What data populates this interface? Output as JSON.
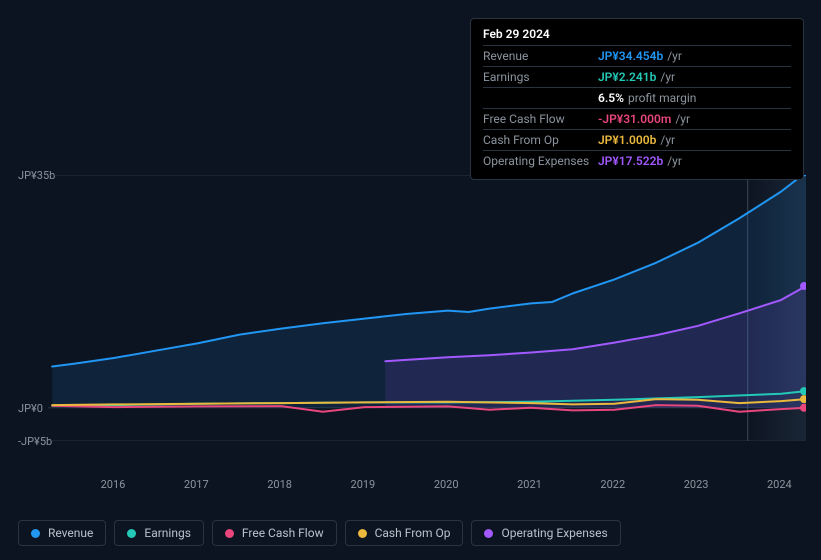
{
  "tooltip": {
    "date": "Feb 29 2024",
    "rows": [
      {
        "label": "Revenue",
        "value": "JP¥34.454b",
        "suffix": "/yr",
        "color": "#2196f3"
      },
      {
        "label": "Earnings",
        "value": "JP¥2.241b",
        "suffix": "/yr",
        "color": "#23c9b6"
      },
      {
        "label": "",
        "value": "6.5%",
        "suffix": "profit margin",
        "color": "#ffffff"
      },
      {
        "label": "Free Cash Flow",
        "value": "-JP¥31.000m",
        "suffix": "/yr",
        "color": "#e8467c"
      },
      {
        "label": "Cash From Op",
        "value": "JP¥1.000b",
        "suffix": "/yr",
        "color": "#eab93d"
      },
      {
        "label": "Operating Expenses",
        "value": "JP¥17.522b",
        "suffix": "/yr",
        "color": "#a259ff"
      }
    ]
  },
  "chart": {
    "type": "area-line",
    "background": "#0d1421",
    "grid_color": "#2a3340",
    "y_axis": {
      "min": -5,
      "max": 35,
      "ticks": [
        {
          "v": 35,
          "label": "JP¥35b"
        },
        {
          "v": 0,
          "label": "JP¥0"
        },
        {
          "v": -5,
          "label": "-JP¥5b"
        }
      ]
    },
    "x_axis": {
      "min": 2015.2,
      "max": 2024.3,
      "ticks": [
        "2016",
        "2017",
        "2018",
        "2019",
        "2020",
        "2021",
        "2022",
        "2023",
        "2024"
      ]
    },
    "highlight_x": 2023.6,
    "series": [
      {
        "name": "Revenue",
        "color": "#2196f3",
        "fill": true,
        "fill_opacity": 0.12,
        "data": [
          [
            2015.25,
            6.2
          ],
          [
            2015.5,
            6.6
          ],
          [
            2016,
            7.5
          ],
          [
            2016.5,
            8.6
          ],
          [
            2017,
            9.7
          ],
          [
            2017.5,
            11.0
          ],
          [
            2018,
            11.9
          ],
          [
            2018.5,
            12.7
          ],
          [
            2019,
            13.4
          ],
          [
            2019.5,
            14.1
          ],
          [
            2020,
            14.6
          ],
          [
            2020.25,
            14.4
          ],
          [
            2020.5,
            14.9
          ],
          [
            2021,
            15.7
          ],
          [
            2021.25,
            15.9
          ],
          [
            2021.5,
            17.2
          ],
          [
            2022,
            19.3
          ],
          [
            2022.5,
            21.8
          ],
          [
            2023,
            24.8
          ],
          [
            2023.5,
            28.5
          ],
          [
            2024,
            32.5
          ],
          [
            2024.3,
            35.4
          ]
        ]
      },
      {
        "name": "Operating Expenses",
        "color": "#a259ff",
        "fill": true,
        "fill_opacity": 0.12,
        "start_x": 2019.25,
        "data": [
          [
            2019.25,
            7.0
          ],
          [
            2019.5,
            7.2
          ],
          [
            2020,
            7.6
          ],
          [
            2020.5,
            7.9
          ],
          [
            2021,
            8.3
          ],
          [
            2021.5,
            8.8
          ],
          [
            2022,
            9.8
          ],
          [
            2022.5,
            10.9
          ],
          [
            2023,
            12.3
          ],
          [
            2023.5,
            14.2
          ],
          [
            2024,
            16.2
          ],
          [
            2024.3,
            18.3
          ]
        ]
      },
      {
        "name": "Earnings",
        "color": "#23c9b6",
        "fill": false,
        "data": [
          [
            2015.25,
            0.3
          ],
          [
            2016,
            0.4
          ],
          [
            2017,
            0.6
          ],
          [
            2018,
            0.7
          ],
          [
            2019,
            0.8
          ],
          [
            2020,
            0.8
          ],
          [
            2021,
            0.9
          ],
          [
            2022,
            1.2
          ],
          [
            2023,
            1.6
          ],
          [
            2024,
            2.1
          ],
          [
            2024.3,
            2.5
          ]
        ]
      },
      {
        "name": "Free Cash Flow",
        "color": "#e8467c",
        "fill": false,
        "data": [
          [
            2015.25,
            0.3
          ],
          [
            2016,
            0.1
          ],
          [
            2017,
            0.2
          ],
          [
            2018,
            0.25
          ],
          [
            2018.5,
            -0.6
          ],
          [
            2019,
            0.1
          ],
          [
            2020,
            0.2
          ],
          [
            2020.5,
            -0.3
          ],
          [
            2021,
            0.0
          ],
          [
            2021.5,
            -0.4
          ],
          [
            2022,
            -0.3
          ],
          [
            2022.5,
            0.4
          ],
          [
            2023,
            0.3
          ],
          [
            2023.5,
            -0.6
          ],
          [
            2024,
            -0.2
          ],
          [
            2024.3,
            0.0
          ]
        ]
      },
      {
        "name": "Cash From Op",
        "color": "#eab93d",
        "fill": false,
        "data": [
          [
            2015.25,
            0.4
          ],
          [
            2016,
            0.5
          ],
          [
            2017,
            0.6
          ],
          [
            2018,
            0.7
          ],
          [
            2019,
            0.8
          ],
          [
            2020,
            0.9
          ],
          [
            2021,
            0.7
          ],
          [
            2021.5,
            0.5
          ],
          [
            2022,
            0.6
          ],
          [
            2022.5,
            1.3
          ],
          [
            2023,
            1.2
          ],
          [
            2023.5,
            0.7
          ],
          [
            2024,
            1.0
          ],
          [
            2024.3,
            1.3
          ]
        ]
      }
    ],
    "end_markers": [
      {
        "color": "#2196f3",
        "y": 35.4
      },
      {
        "color": "#a259ff",
        "y": 18.3
      },
      {
        "color": "#23c9b6",
        "y": 2.5
      },
      {
        "color": "#eab93d",
        "y": 1.3
      },
      {
        "color": "#e8467c",
        "y": 0.0
      }
    ]
  },
  "legend": [
    {
      "label": "Revenue",
      "color": "#2196f3"
    },
    {
      "label": "Earnings",
      "color": "#23c9b6"
    },
    {
      "label": "Free Cash Flow",
      "color": "#e8467c"
    },
    {
      "label": "Cash From Op",
      "color": "#eab93d"
    },
    {
      "label": "Operating Expenses",
      "color": "#a259ff"
    }
  ]
}
